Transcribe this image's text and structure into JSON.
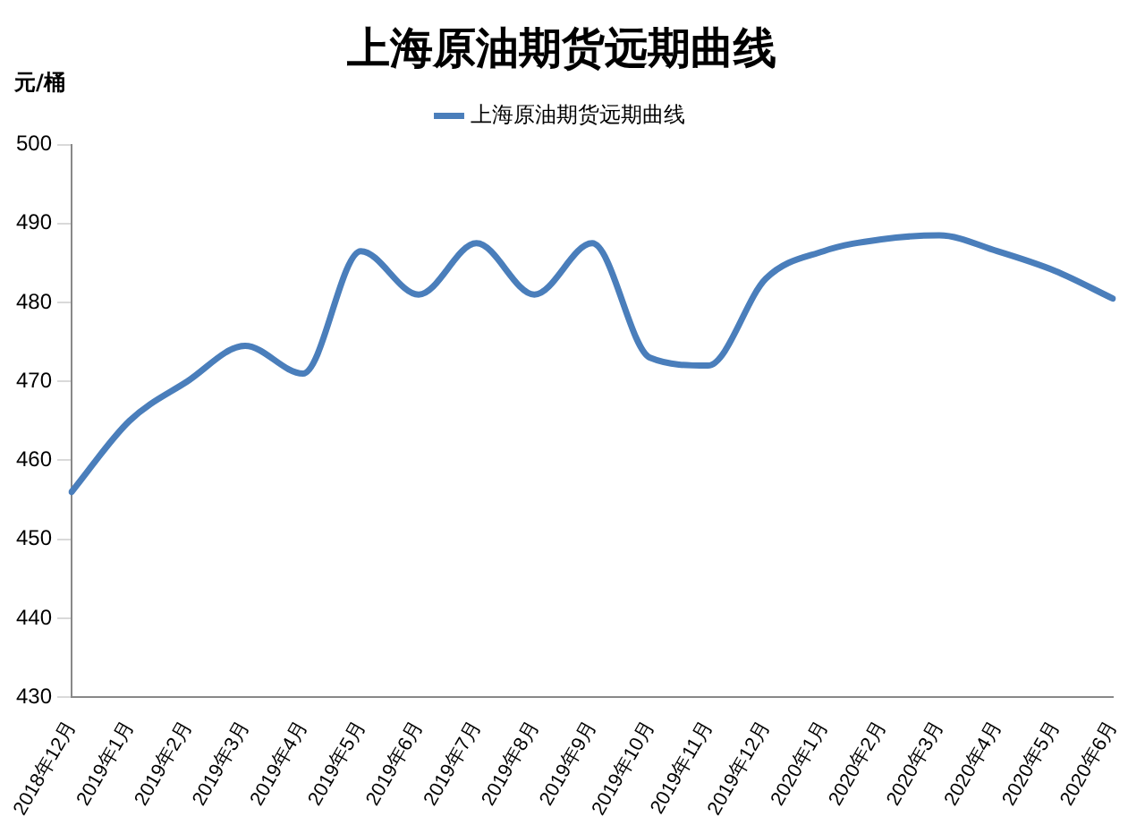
{
  "chart_data": {
    "type": "line",
    "title": "上海原油期货远期曲线",
    "ylabel": "元/桶",
    "categories": [
      "2018年12月",
      "2019年1月",
      "2019年2月",
      "2019年3月",
      "2019年4月",
      "2019年5月",
      "2019年6月",
      "2019年7月",
      "2019年8月",
      "2019年9月",
      "2019年10月",
      "2019年11月",
      "2019年12月",
      "2020年1月",
      "2020年2月",
      "2020年3月",
      "2020年4月",
      "2020年5月",
      "2020年6月"
    ],
    "series": [
      {
        "name": "上海原油期货远期曲线",
        "color": "#4a7ebb",
        "values": [
          456,
          465,
          470,
          474.5,
          471,
          486.5,
          481,
          487.5,
          481,
          487.5,
          473,
          472,
          483,
          486.5,
          488,
          488.5,
          486.5,
          484,
          480.5
        ]
      }
    ],
    "ylim": [
      430,
      500
    ],
    "yticks": [
      430,
      440,
      450,
      460,
      470,
      480,
      490,
      500
    ],
    "grid": false,
    "legend": "top",
    "marker": "none",
    "line_style": "solid"
  }
}
